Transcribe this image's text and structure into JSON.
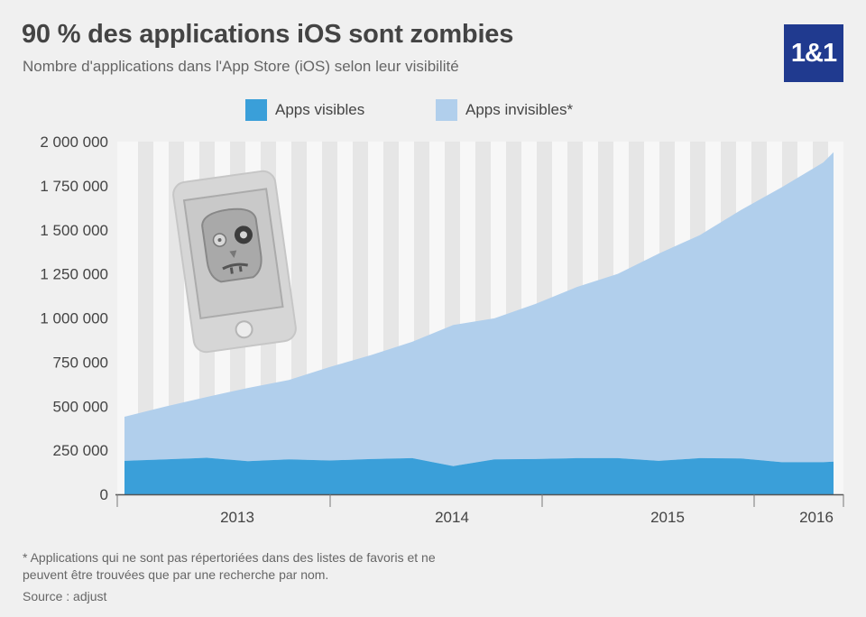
{
  "header": {
    "title": "90 % des applications iOS sont zombies",
    "subtitle": "Nombre d'applications dans l'App Store (iOS) selon leur visibilité",
    "logo_text": "1&1",
    "logo_color": "#203a8f"
  },
  "footer": {
    "footnote": "* Applications qui ne sont pas répertoriées dans des listes de favoris et ne peuvent être trouvées que par une recherche par nom.",
    "source": "Source : adjust"
  },
  "illustration": {
    "icon": "zombie-phone-icon"
  },
  "chart_data": {
    "type": "area",
    "stacked": true,
    "x": [
      2012.6,
      2012.8,
      2013.0,
      2013.2,
      2013.4,
      2013.6,
      2013.8,
      2014.0,
      2014.2,
      2014.4,
      2014.6,
      2014.8,
      2015.0,
      2015.2,
      2015.4,
      2015.6,
      2015.8,
      2016.0,
      2016.05
    ],
    "series": [
      {
        "name": "Apps visibles",
        "color": "#3a9fd9",
        "values": [
          190000,
          198000,
          207000,
          188000,
          198000,
          192000,
          200000,
          205000,
          160000,
          198000,
          200000,
          205000,
          205000,
          190000,
          205000,
          203000,
          182000,
          182000,
          185000
        ]
      },
      {
        "name": "Apps invisibles*",
        "color": "#b1cfec",
        "values": [
          250000,
          300000,
          345000,
          415000,
          450000,
          530000,
          590000,
          660000,
          800000,
          800000,
          880000,
          970000,
          1045000,
          1175000,
          1265000,
          1410000,
          1560000,
          1700000,
          1755000
        ]
      }
    ],
    "xticks": [
      {
        "label": "2013",
        "value": 2013.0
      },
      {
        "label": "2014",
        "value": 2014.0
      },
      {
        "label": "2015",
        "value": 2015.0
      },
      {
        "label": "2016",
        "value": 2016.0
      }
    ],
    "xlim": [
      2012.6,
      2016.05
    ],
    "ylim": [
      0,
      2000000
    ],
    "yticks": [
      {
        "label": "2 000 000",
        "value": 2000000
      },
      {
        "label": "1 750 000",
        "value": 1750000
      },
      {
        "label": "1 500 000",
        "value": 1500000
      },
      {
        "label": "1 250 000",
        "value": 1250000
      },
      {
        "label": "1 000 000",
        "value": 1000000
      },
      {
        "label": "750 000",
        "value": 750000
      },
      {
        "label": "500 000",
        "value": 500000
      },
      {
        "label": "250 000",
        "value": 250000
      },
      {
        "label": "0",
        "value": 0
      }
    ],
    "grid": "vertical-stripes",
    "legend_position": "top"
  }
}
